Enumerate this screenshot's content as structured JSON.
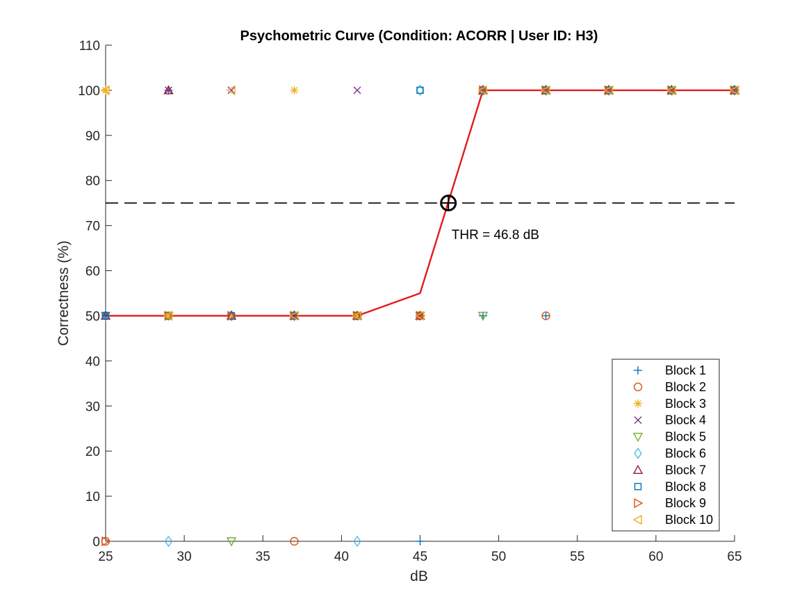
{
  "chart_data": {
    "type": "scatter",
    "title": "Psychometric Curve (Condition: ACORR | User ID: H3)",
    "xlabel": "dB",
    "ylabel": "Correctness (%)",
    "xlim": [
      25,
      65
    ],
    "ylim": [
      0,
      110
    ],
    "xticks": [
      25,
      30,
      35,
      40,
      45,
      50,
      55,
      60,
      65
    ],
    "yticks": [
      0,
      10,
      20,
      30,
      40,
      50,
      60,
      70,
      80,
      90,
      100,
      110
    ],
    "grid": false,
    "legend_position": "bottom-right",
    "series": [
      {
        "name": "Block 1",
        "marker": "plus",
        "color": "#0072BD",
        "points": [
          [
            25,
            50
          ],
          [
            29,
            100
          ],
          [
            33,
            50
          ],
          [
            37,
            50
          ],
          [
            41,
            50
          ],
          [
            45,
            0
          ],
          [
            49,
            50
          ],
          [
            53,
            50
          ],
          [
            49,
            100
          ],
          [
            57,
            100
          ],
          [
            61,
            100
          ],
          [
            65,
            100
          ]
        ]
      },
      {
        "name": "Block 2",
        "marker": "circle",
        "color": "#D95319",
        "points": [
          [
            25,
            0
          ],
          [
            29,
            50
          ],
          [
            33,
            50
          ],
          [
            37,
            0
          ],
          [
            41,
            50
          ],
          [
            45,
            50
          ],
          [
            49,
            100
          ],
          [
            53,
            50
          ],
          [
            53,
            100
          ],
          [
            57,
            100
          ],
          [
            61,
            100
          ],
          [
            65,
            100
          ]
        ]
      },
      {
        "name": "Block 3",
        "marker": "asterisk",
        "color": "#EDB120",
        "points": [
          [
            25,
            100
          ],
          [
            29,
            50
          ],
          [
            33,
            50
          ],
          [
            37,
            100
          ],
          [
            41,
            50
          ],
          [
            45,
            50
          ],
          [
            49,
            100
          ],
          [
            53,
            100
          ],
          [
            57,
            100
          ],
          [
            61,
            100
          ],
          [
            65,
            100
          ]
        ]
      },
      {
        "name": "Block 4",
        "marker": "x",
        "color": "#7E2F8E",
        "points": [
          [
            25,
            50
          ],
          [
            29,
            100
          ],
          [
            33,
            100
          ],
          [
            37,
            50
          ],
          [
            41,
            100
          ],
          [
            45,
            50
          ],
          [
            49,
            100
          ],
          [
            53,
            100
          ],
          [
            57,
            100
          ],
          [
            61,
            100
          ],
          [
            65,
            100
          ]
        ]
      },
      {
        "name": "Block 5",
        "marker": "triangle-down",
        "color": "#77AC30",
        "points": [
          [
            25,
            50
          ],
          [
            29,
            50
          ],
          [
            33,
            0
          ],
          [
            37,
            50
          ],
          [
            41,
            50
          ],
          [
            45,
            50
          ],
          [
            49,
            50
          ],
          [
            53,
            100
          ],
          [
            57,
            100
          ],
          [
            61,
            100
          ],
          [
            65,
            100
          ]
        ]
      },
      {
        "name": "Block 6",
        "marker": "diamond",
        "color": "#4DBEEE",
        "points": [
          [
            25,
            50
          ],
          [
            29,
            0
          ],
          [
            33,
            50
          ],
          [
            37,
            50
          ],
          [
            41,
            0
          ],
          [
            45,
            100
          ],
          [
            49,
            100
          ],
          [
            53,
            100
          ],
          [
            57,
            100
          ],
          [
            61,
            100
          ],
          [
            65,
            100
          ]
        ]
      },
      {
        "name": "Block 7",
        "marker": "triangle-up",
        "color": "#A2142F",
        "points": [
          [
            25,
            50
          ],
          [
            29,
            100
          ],
          [
            33,
            50
          ],
          [
            37,
            50
          ],
          [
            41,
            50
          ],
          [
            45,
            50
          ],
          [
            49,
            100
          ],
          [
            53,
            100
          ],
          [
            57,
            100
          ],
          [
            61,
            100
          ],
          [
            65,
            100
          ]
        ]
      },
      {
        "name": "Block 8",
        "marker": "square",
        "color": "#0072BD",
        "points": [
          [
            25,
            50
          ],
          [
            29,
            50
          ],
          [
            33,
            50
          ],
          [
            37,
            50
          ],
          [
            41,
            50
          ],
          [
            45,
            100
          ],
          [
            49,
            100
          ],
          [
            53,
            100
          ],
          [
            57,
            100
          ],
          [
            61,
            100
          ],
          [
            65,
            100
          ]
        ]
      },
      {
        "name": "Block 9",
        "marker": "triangle-right",
        "color": "#D95319",
        "points": [
          [
            25,
            0
          ],
          [
            29,
            50
          ],
          [
            33,
            50
          ],
          [
            37,
            50
          ],
          [
            41,
            50
          ],
          [
            45,
            50
          ],
          [
            49,
            100
          ],
          [
            53,
            100
          ],
          [
            57,
            100
          ],
          [
            61,
            100
          ],
          [
            65,
            100
          ]
        ]
      },
      {
        "name": "Block 10",
        "marker": "triangle-left",
        "color": "#EDB120",
        "points": [
          [
            25,
            100
          ],
          [
            29,
            50
          ],
          [
            33,
            100
          ],
          [
            37,
            50
          ],
          [
            41,
            50
          ],
          [
            45,
            50
          ],
          [
            49,
            100
          ],
          [
            53,
            100
          ],
          [
            57,
            100
          ],
          [
            61,
            100
          ],
          [
            65,
            100
          ]
        ]
      }
    ],
    "fit_curve": {
      "color": "#E31A1C",
      "x": [
        25,
        29,
        33,
        37,
        41,
        45,
        49,
        53,
        57,
        61,
        65
      ],
      "y": [
        50,
        50,
        50,
        50,
        50,
        55,
        100,
        100,
        100,
        100,
        100
      ]
    },
    "threshold_line": {
      "y": 75,
      "style": "dashed",
      "color": "#000000"
    },
    "threshold_point": {
      "x": 46.8,
      "y": 75
    },
    "annotation": {
      "text": "THR = 46.8 dB",
      "x": 47,
      "y": 67
    }
  }
}
